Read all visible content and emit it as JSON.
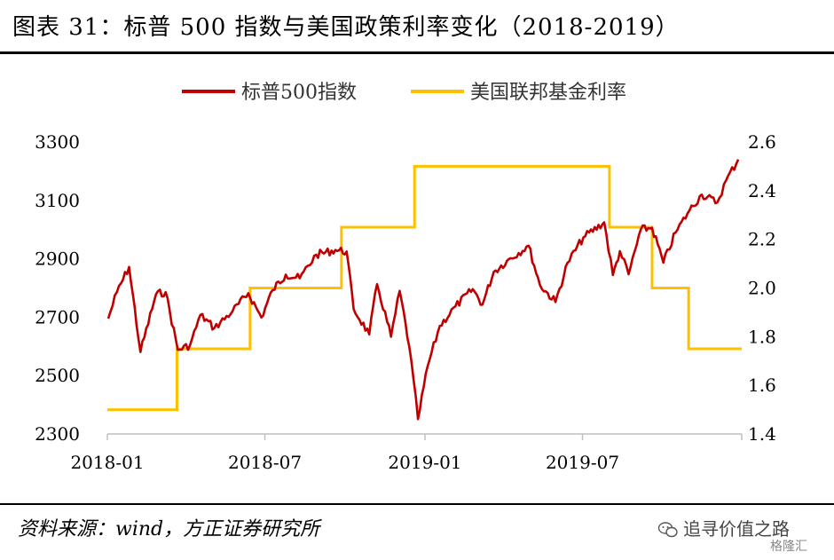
{
  "title": "图表 31：标普 500 指数与美国政策利率变化（2018-2019）",
  "source": "资料来源：wind，方正证券研究所",
  "brand": {
    "name": "追寻价值之路",
    "sub": "格隆汇"
  },
  "colors": {
    "sp500": "#c00000",
    "fed": "#ffc000"
  },
  "chart_data": {
    "type": "line",
    "title": "",
    "x_range": [
      "2018-01-01",
      "2019-12-31"
    ],
    "x_ticks": [
      "2018-01",
      "2018-07",
      "2019-01",
      "2019-07"
    ],
    "y_left": {
      "min": 2300,
      "max": 3300,
      "ticks": [
        2300,
        2500,
        2700,
        2900,
        3100,
        3300
      ]
    },
    "y_right": {
      "min": 1.4,
      "max": 2.6,
      "ticks": [
        "1.4",
        "1.6",
        "1.8",
        "2.0",
        "2.2",
        "2.4",
        "2.6"
      ]
    },
    "legend_position": "top-center",
    "series": [
      {
        "name": "标普500指数",
        "axis": "left",
        "x": [
          "2018-01-02",
          "2018-01-12",
          "2018-01-26",
          "2018-02-08",
          "2018-02-26",
          "2018-03-09",
          "2018-03-23",
          "2018-04-06",
          "2018-04-18",
          "2018-05-04",
          "2018-05-25",
          "2018-06-12",
          "2018-06-27",
          "2018-07-10",
          "2018-07-25",
          "2018-08-10",
          "2018-08-29",
          "2018-09-20",
          "2018-10-03",
          "2018-10-11",
          "2018-10-29",
          "2018-11-07",
          "2018-11-23",
          "2018-12-03",
          "2018-12-14",
          "2018-12-24",
          "2019-01-04",
          "2019-01-18",
          "2019-02-05",
          "2019-02-25",
          "2019-03-08",
          "2019-03-21",
          "2019-04-05",
          "2019-04-30",
          "2019-05-13",
          "2019-05-31",
          "2019-06-14",
          "2019-07-02",
          "2019-07-26",
          "2019-08-05",
          "2019-08-13",
          "2019-08-23",
          "2019-09-06",
          "2019-09-19",
          "2019-10-02",
          "2019-10-16",
          "2019-11-01",
          "2019-11-15",
          "2019-12-03",
          "2019-12-13",
          "2019-12-27"
        ],
        "y": [
          2695,
          2786,
          2872,
          2581,
          2779,
          2786,
          2588,
          2604,
          2708,
          2663,
          2721,
          2782,
          2699,
          2793,
          2846,
          2833,
          2914,
          2930,
          2925,
          2728,
          2641,
          2813,
          2633,
          2790,
          2599,
          2351,
          2531,
          2670,
          2737,
          2796,
          2743,
          2855,
          2892,
          2945,
          2811,
          2752,
          2887,
          2973,
          3025,
          2844,
          2926,
          2847,
          3000,
          3006,
          2887,
          2990,
          3066,
          3120,
          3093,
          3168,
          3240
        ]
      },
      {
        "name": "美国联邦基金利率",
        "axis": "right",
        "step": true,
        "x": [
          "2018-01-01",
          "2018-03-22",
          "2018-06-14",
          "2018-09-27",
          "2018-12-20",
          "2019-08-01",
          "2019-09-19",
          "2019-10-31",
          "2019-12-31"
        ],
        "y": [
          1.5,
          1.75,
          2.0,
          2.25,
          2.5,
          2.25,
          2.0,
          1.75,
          1.75
        ]
      }
    ]
  }
}
